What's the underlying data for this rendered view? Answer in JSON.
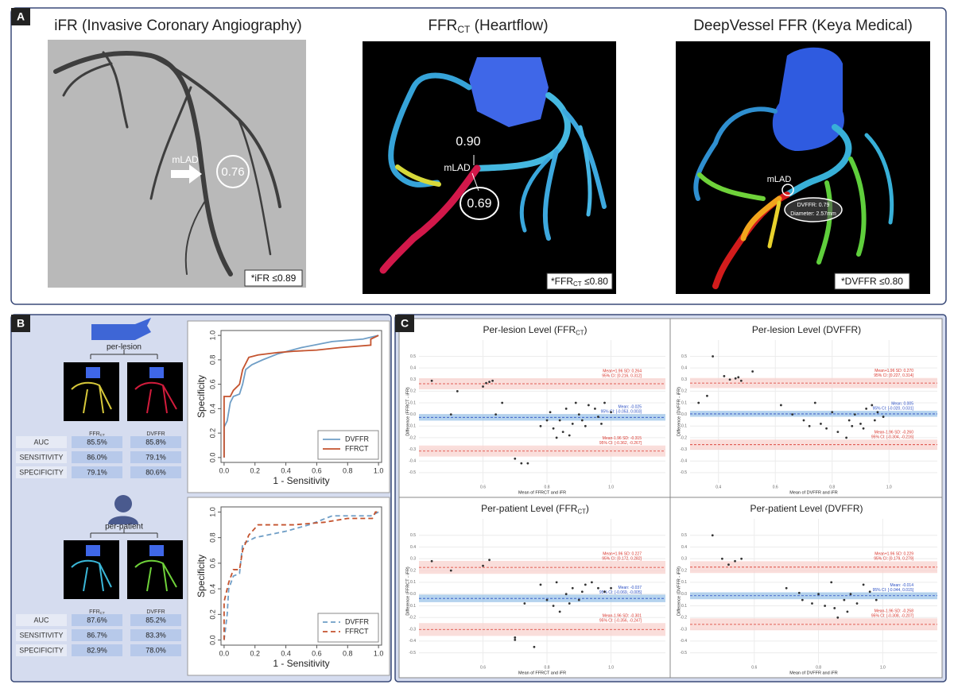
{
  "panel_a": {
    "label": "A",
    "ifr": {
      "title": "iFR (Invasive Coronary Angiography)",
      "lesion": "mLAD",
      "value": "0.76",
      "threshold": "*iFR ≤0.89"
    },
    "ffrct": {
      "title": {
        "main": "FFR",
        "sub": "CT",
        "rest": " (Heartflow)"
      },
      "lesion": "mLAD",
      "proximal": "0.90",
      "distal": "0.69",
      "threshold": {
        "main": "*FFR",
        "sub": "CT",
        "rest": " ≤0.80"
      }
    },
    "dvffr": {
      "title": "DeepVessel FFR (Keya Medical)",
      "lesion": "mLAD",
      "callout_1": "DVFFR: 0.79",
      "callout_2": "Diameter: 2.57mm",
      "threshold": "*DVFFR ≤0.80"
    }
  },
  "panel_b": {
    "label": "B",
    "groups": [
      {
        "name": "per-lesion",
        "columns": [
          {
            "main": "FFR",
            "sub": "CT"
          },
          "DVFFR"
        ],
        "rows": [
          {
            "metric": "AUC",
            "values": [
              "85.5%",
              "85.8%"
            ]
          },
          {
            "metric": "SENSITIVITY",
            "values": [
              "86.0%",
              "79.1%"
            ]
          },
          {
            "metric": "SPECIFICITY",
            "values": [
              "79.1%",
              "80.6%"
            ]
          }
        ],
        "chart": {
          "type": "line",
          "x_label": "1 - Sensitivity",
          "y_label": "Specificity",
          "line_style": "solid",
          "legend": "bottom-right",
          "xlim": [
            -0.02,
            1.02
          ],
          "ylim": [
            -0.04,
            1.04
          ],
          "xticks": [
            {
              "value": 0,
              "label": "0.0"
            },
            0.2,
            0.4,
            0.6,
            0.8,
            {
              "value": 1,
              "label": "1.0"
            }
          ],
          "yticks": [
            {
              "value": 0,
              "label": "0.0"
            },
            0.2,
            0.4,
            0.6,
            0.8,
            {
              "value": 1,
              "label": "1.0"
            }
          ],
          "series": [
            {
              "name": "DVFFR",
              "color": "#6f9ec6",
              "x": [
                0,
                0,
                0.02,
                0.04,
                0.06,
                0.1,
                0.12,
                0.14,
                0.18,
                0.25,
                0.35,
                0.5,
                0.7,
                0.9,
                1
              ],
              "values": [
                0,
                0.25,
                0.3,
                0.45,
                0.5,
                0.52,
                0.6,
                0.72,
                0.76,
                0.8,
                0.85,
                0.9,
                0.95,
                0.97,
                1
              ]
            },
            {
              "name": "FFRCT",
              "color": "#c4532e",
              "x": [
                0,
                0,
                0.04,
                0.06,
                0.1,
                0.12,
                0.16,
                0.22,
                0.35,
                0.45,
                0.6,
                0.75,
                0.95,
                0.95,
                1
              ],
              "values": [
                0,
                0.5,
                0.5,
                0.55,
                0.6,
                0.72,
                0.82,
                0.84,
                0.86,
                0.87,
                0.88,
                0.9,
                0.92,
                0.97,
                1
              ]
            }
          ]
        }
      },
      {
        "name": "per-patient",
        "columns": [
          {
            "main": "FFR",
            "sub": "CT"
          },
          "DVFFR"
        ],
        "rows": [
          {
            "metric": "AUC",
            "values": [
              "87.6%",
              "85.2%"
            ]
          },
          {
            "metric": "SENSITIVITY",
            "values": [
              "86.7%",
              "83.3%"
            ]
          },
          {
            "metric": "SPECIFICITY",
            "values": [
              "82.9%",
              "78.0%"
            ]
          }
        ],
        "chart": {
          "type": "line",
          "x_label": "1 - Sensitivity",
          "y_label": "Specificity",
          "line_style": "dashed",
          "legend": "bottom-right",
          "xlim": [
            -0.02,
            1.02
          ],
          "ylim": [
            -0.04,
            1.04
          ],
          "xticks": [
            {
              "value": 0,
              "label": "0.0"
            },
            0.2,
            0.4,
            0.6,
            0.8,
            {
              "value": 1,
              "label": "1.0"
            }
          ],
          "yticks": [
            {
              "value": 0,
              "label": "0.0"
            },
            0.2,
            0.4,
            0.6,
            0.8,
            {
              "value": 1,
              "label": "1.0"
            }
          ],
          "series": [
            {
              "name": "DVFFR",
              "color": "#6f9ec6",
              "x": [
                0,
                0.02,
                0.03,
                0.06,
                0.1,
                0.12,
                0.2,
                0.4,
                0.55,
                0.7,
                0.95,
                1
              ],
              "values": [
                0,
                0.2,
                0.4,
                0.5,
                0.52,
                0.75,
                0.8,
                0.85,
                0.9,
                0.97,
                0.97,
                1
              ]
            },
            {
              "name": "FFRCT",
              "color": "#c4532e",
              "x": [
                0,
                0,
                0.03,
                0.06,
                0.1,
                0.12,
                0.16,
                0.22,
                0.45,
                0.65,
                0.8,
                0.96,
                0.98,
                1
              ],
              "values": [
                0,
                0.3,
                0.45,
                0.55,
                0.55,
                0.7,
                0.82,
                0.9,
                0.9,
                0.92,
                0.95,
                0.95,
                1,
                1
              ]
            }
          ]
        }
      }
    ]
  },
  "panel_c": {
    "label": "C",
    "charts": [
      {
        "type": "scatter",
        "title": {
          "main": "Per-lesion Level (FFR",
          "sub": "CT",
          "rest": ")"
        },
        "x_label": "Mean of FFRCT and iFR",
        "y_label": "Difference (FFRCT - iFR)",
        "xlim": [
          0.4,
          1.17
        ],
        "ylim": [
          -0.59,
          0.64
        ],
        "xticks": [
          0.6,
          0.8,
          {
            "value": 1,
            "label": "1.0"
          }
        ],
        "yticks": [
          0.5,
          0.4,
          0.3,
          0.2,
          0.1,
          {
            "value": 0,
            "label": "0.0"
          },
          -0.1,
          -0.2,
          -0.3,
          -0.4,
          -0.5
        ],
        "point_color": "#333333",
        "x": [
          0.44,
          0.52,
          0.6,
          0.61,
          0.62,
          0.63,
          0.5,
          0.66,
          0.64,
          0.7,
          0.72,
          0.74,
          0.78,
          0.8,
          0.82,
          0.83,
          0.85,
          0.86,
          0.88,
          0.9,
          0.92,
          0.93,
          0.95,
          0.96,
          0.98,
          1.0,
          0.84,
          0.87,
          0.91,
          0.97,
          0.81,
          0.89
        ],
        "values": [
          0.29,
          0.2,
          0.24,
          0.27,
          0.28,
          0.29,
          0.0,
          0.1,
          0.0,
          -0.38,
          -0.42,
          -0.42,
          -0.1,
          -0.05,
          -0.12,
          -0.2,
          -0.15,
          0.05,
          -0.08,
          0.0,
          -0.1,
          0.08,
          0.05,
          -0.02,
          0.1,
          0.02,
          -0.05,
          -0.18,
          -0.05,
          -0.08,
          0.02,
          0.1
        ],
        "lines": [
          {
            "label": "Mean+1.96 SD: 0.264",
            "ci_label": "95% CI: [0.216, 0.312]",
            "value": 0.264,
            "ci": [
              0.216,
              0.312
            ],
            "color": "#d9342b",
            "band": "#f8d3cf"
          },
          {
            "label": "Mean: -0.025",
            "ci_label": "95% CI: [-0.053, 0.003]",
            "value": -0.025,
            "ci": [
              -0.053,
              0.003
            ],
            "color": "#2b4fc4",
            "band": "#9cc4e8"
          },
          {
            "label": "Mean-1.96 SD: -0.315",
            "ci_label": "95% CI: [-0.362, -0.267]",
            "value": -0.315,
            "ci": [
              -0.362,
              -0.267
            ],
            "color": "#d9342b",
            "band": "#f8d3cf"
          }
        ]
      },
      {
        "type": "scatter",
        "title": {
          "main": "Per-lesion Level (DVFFR)"
        },
        "x_label": "Mean of DVFFR and iFR",
        "y_label": "Difference (DVFFR - iFR)",
        "xlim": [
          0.3,
          1.17
        ],
        "ylim": [
          -0.59,
          0.64
        ],
        "xticks": [
          0.4,
          0.6,
          0.8,
          {
            "value": 1,
            "label": "1.0"
          }
        ],
        "yticks": [
          0.5,
          0.4,
          0.3,
          0.2,
          0.1,
          {
            "value": 0,
            "label": "0.0"
          },
          -0.1,
          -0.2,
          -0.3,
          -0.4,
          -0.5
        ],
        "point_color": "#333333",
        "x": [
          0.33,
          0.38,
          0.42,
          0.44,
          0.46,
          0.47,
          0.48,
          0.52,
          0.36,
          0.62,
          0.66,
          0.7,
          0.72,
          0.76,
          0.78,
          0.82,
          0.85,
          0.86,
          0.88,
          0.9,
          0.92,
          0.94,
          0.96,
          0.98,
          0.8,
          0.87,
          0.91,
          0.95,
          0.74
        ],
        "values": [
          0.1,
          0.5,
          0.33,
          0.3,
          0.31,
          0.32,
          0.29,
          0.37,
          0.16,
          0.08,
          0.0,
          -0.05,
          -0.1,
          -0.08,
          -0.12,
          -0.15,
          -0.2,
          -0.05,
          0.0,
          -0.08,
          0.05,
          0.08,
          0.02,
          -0.02,
          0.02,
          -0.1,
          -0.12,
          -0.05,
          0.1
        ],
        "lines": [
          {
            "label": "Mean+1.96 SD: 0.270",
            "ci_label": "95% CI: [0.227, 0.314]",
            "value": 0.27,
            "ci": [
              0.227,
              0.314
            ],
            "color": "#d9342b",
            "band": "#f8d3cf"
          },
          {
            "label": "Mean: 0.005",
            "ci_label": "95% CI: [-0.020, 0.031]",
            "value": 0.005,
            "ci": [
              -0.02,
              0.031
            ],
            "color": "#2b4fc4",
            "band": "#9cc4e8"
          },
          {
            "label": "Mean-1.96 SD: -0.260",
            "ci_label": "95% CI: [-0.304, -0.216]",
            "value": -0.26,
            "ci": [
              -0.304,
              -0.216
            ],
            "color": "#d9342b",
            "band": "#f8d3cf"
          }
        ]
      },
      {
        "type": "scatter",
        "title": {
          "main": "Per-patient Level (FFR",
          "sub": "CT",
          "rest": ")"
        },
        "x_label": "Mean of FFRCT and iFR",
        "y_label": "Difference (FFRCT - iFR)",
        "xlim": [
          0.4,
          1.17
        ],
        "ylim": [
          -0.59,
          0.64
        ],
        "xticks": [
          0.6,
          0.8,
          {
            "value": 1,
            "label": "1.0"
          }
        ],
        "yticks": [
          0.5,
          0.4,
          0.3,
          0.2,
          0.1,
          {
            "value": 0,
            "label": "0.0"
          },
          -0.1,
          -0.2,
          -0.3,
          -0.4,
          -0.5
        ],
        "point_color": "#333333",
        "x": [
          0.44,
          0.5,
          0.6,
          0.62,
          0.7,
          0.7,
          0.76,
          0.78,
          0.8,
          0.82,
          0.84,
          0.86,
          0.88,
          0.9,
          0.92,
          0.94,
          0.96,
          0.98,
          1.0,
          0.83,
          0.87,
          0.91,
          0.73
        ],
        "values": [
          0.28,
          0.2,
          0.24,
          0.29,
          -0.37,
          -0.39,
          -0.45,
          0.08,
          -0.05,
          -0.1,
          -0.15,
          0.0,
          0.05,
          -0.05,
          0.08,
          0.1,
          0.05,
          0.02,
          0.05,
          0.1,
          -0.08,
          0.02,
          -0.08
        ],
        "lines": [
          {
            "label": "Mean+1.96 SD: 0.227",
            "ci_label": "95% CI: [0.172, 0.282]",
            "value": 0.227,
            "ci": [
              0.172,
              0.282
            ],
            "color": "#d9342b",
            "band": "#f8d3cf"
          },
          {
            "label": "Mean: -0.037",
            "ci_label": "95% CI: [-0.069, -0.005]",
            "value": -0.037,
            "ci": [
              -0.069,
              -0.005
            ],
            "color": "#2b4fc4",
            "band": "#9cc4e8"
          },
          {
            "label": "Mean-1.96 SD: -0.301",
            "ci_label": "95% CI: [-0.356, -0.247]",
            "value": -0.301,
            "ci": [
              -0.356,
              -0.247
            ],
            "color": "#d9342b",
            "band": "#f8d3cf"
          }
        ]
      },
      {
        "type": "scatter",
        "title": {
          "main": "Per-patient Level (DVFFR)"
        },
        "x_label": "Mean of DVFFR and iFR",
        "y_label": "Difference (DVFFR - iFR)",
        "xlim": [
          0.4,
          1.17
        ],
        "ylim": [
          -0.59,
          0.64
        ],
        "xticks": [
          0.6,
          0.8,
          {
            "value": 1,
            "label": "1.0"
          }
        ],
        "yticks": [
          0.5,
          0.4,
          0.3,
          0.2,
          0.1,
          {
            "value": 0,
            "label": "0.0"
          },
          -0.1,
          -0.2,
          -0.3,
          -0.4,
          -0.5
        ],
        "point_color": "#333333",
        "x": [
          0.47,
          0.5,
          0.52,
          0.54,
          0.56,
          0.7,
          0.75,
          0.78,
          0.8,
          0.82,
          0.85,
          0.86,
          0.88,
          0.9,
          0.92,
          0.94,
          0.96,
          0.98,
          0.84,
          0.89,
          0.74
        ],
        "values": [
          0.5,
          0.3,
          0.25,
          0.28,
          0.3,
          0.05,
          -0.05,
          -0.08,
          0.0,
          -0.1,
          -0.12,
          -0.2,
          -0.05,
          0.0,
          -0.08,
          0.08,
          0.02,
          -0.05,
          0.1,
          -0.15,
          0.01
        ],
        "lines": [
          {
            "label": "Mean+1.96 SD: 0.229",
            "ci_label": "95% CI: [0.179, 0.279]",
            "value": 0.229,
            "ci": [
              0.179,
              0.279
            ],
            "color": "#d9342b",
            "band": "#f8d3cf"
          },
          {
            "label": "Mean: -0.014",
            "ci_label": "95% CI: [-0.044, 0.015]",
            "value": -0.014,
            "ci": [
              -0.044,
              0.015
            ],
            "color": "#2b4fc4",
            "band": "#9cc4e8"
          },
          {
            "label": "Mean-1.96 SD: -0.258",
            "ci_label": "95% CI: [-0.308, -0.207]",
            "value": -0.258,
            "ci": [
              -0.308,
              -0.207
            ],
            "color": "#d9342b",
            "band": "#f8d3cf"
          }
        ]
      }
    ]
  }
}
